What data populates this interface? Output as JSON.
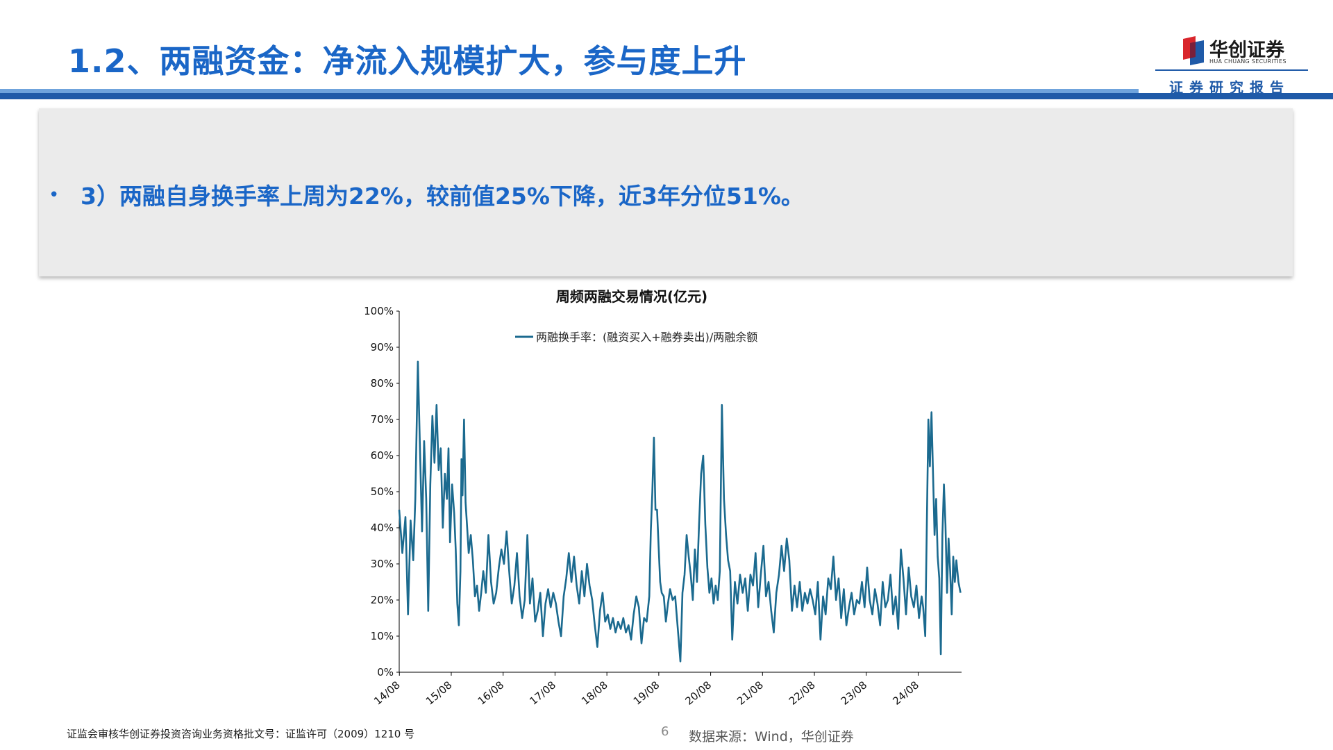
{
  "header": {
    "title": "1.2、两融资金：净流入规模扩大，参与度上升"
  },
  "logo": {
    "name_cn": "华创证券",
    "name_en": "HUA CHUANG SECURITIES",
    "tagline": "证券研究报告"
  },
  "summary": {
    "bullet": "•",
    "text": "3）两融自身换手率上周为22%，较前值25%下降，近3年分位51%。"
  },
  "chart_data": {
    "type": "line",
    "title": "周频两融交易情况(亿元)",
    "legend_position": "top-center",
    "grid": false,
    "ylim": [
      0,
      100
    ],
    "y_ticks": [
      "100%",
      "90%",
      "80%",
      "70%",
      "60%",
      "50%",
      "40%",
      "30%",
      "20%",
      "10%",
      "0%"
    ],
    "x_ticks": [
      "14/08",
      "15/08",
      "16/08",
      "17/08",
      "18/08",
      "19/08",
      "20/08",
      "21/08",
      "22/08",
      "23/08",
      "24/08"
    ],
    "x_range": [
      2014.58,
      2025.42
    ],
    "series": [
      {
        "name": "两融换手率：(融资买入+融券卖出)/两融余额",
        "color": "#1b6a8f",
        "points": [
          [
            2014.58,
            45
          ],
          [
            2014.64,
            33
          ],
          [
            2014.7,
            43
          ],
          [
            2014.75,
            16
          ],
          [
            2014.8,
            42
          ],
          [
            2014.85,
            31
          ],
          [
            2014.89,
            48
          ],
          [
            2014.94,
            86
          ],
          [
            2014.98,
            62
          ],
          [
            2015.02,
            39
          ],
          [
            2015.06,
            64
          ],
          [
            2015.1,
            48
          ],
          [
            2015.14,
            17
          ],
          [
            2015.18,
            52
          ],
          [
            2015.22,
            71
          ],
          [
            2015.26,
            58
          ],
          [
            2015.3,
            74
          ],
          [
            2015.34,
            56
          ],
          [
            2015.38,
            62
          ],
          [
            2015.42,
            40
          ],
          [
            2015.46,
            55
          ],
          [
            2015.5,
            48
          ],
          [
            2015.53,
            62
          ],
          [
            2015.56,
            36
          ],
          [
            2015.6,
            52
          ],
          [
            2015.64,
            44
          ],
          [
            2015.67,
            34
          ],
          [
            2015.7,
            19
          ],
          [
            2015.73,
            13
          ],
          [
            2015.76,
            28
          ],
          [
            2015.78,
            59
          ],
          [
            2015.8,
            49
          ],
          [
            2015.83,
            70
          ],
          [
            2015.86,
            47
          ],
          [
            2015.89,
            40
          ],
          [
            2015.92,
            33
          ],
          [
            2015.96,
            38
          ],
          [
            2016.0,
            31
          ],
          [
            2016.04,
            21
          ],
          [
            2016.08,
            24
          ],
          [
            2016.12,
            17
          ],
          [
            2016.16,
            22
          ],
          [
            2016.2,
            28
          ],
          [
            2016.25,
            22
          ],
          [
            2016.3,
            38
          ],
          [
            2016.35,
            25
          ],
          [
            2016.4,
            19
          ],
          [
            2016.45,
            22
          ],
          [
            2016.5,
            29
          ],
          [
            2016.55,
            34
          ],
          [
            2016.6,
            30
          ],
          [
            2016.65,
            39
          ],
          [
            2016.7,
            28
          ],
          [
            2016.75,
            19
          ],
          [
            2016.8,
            24
          ],
          [
            2016.85,
            33
          ],
          [
            2016.9,
            21
          ],
          [
            2016.95,
            15
          ],
          [
            2017.0,
            20
          ],
          [
            2017.05,
            38
          ],
          [
            2017.1,
            19
          ],
          [
            2017.15,
            26
          ],
          [
            2017.2,
            14
          ],
          [
            2017.25,
            17
          ],
          [
            2017.3,
            22
          ],
          [
            2017.35,
            10
          ],
          [
            2017.4,
            19
          ],
          [
            2017.45,
            23
          ],
          [
            2017.5,
            18
          ],
          [
            2017.55,
            22
          ],
          [
            2017.6,
            19
          ],
          [
            2017.65,
            14
          ],
          [
            2017.7,
            10
          ],
          [
            2017.75,
            21
          ],
          [
            2017.8,
            26
          ],
          [
            2017.85,
            33
          ],
          [
            2017.9,
            25
          ],
          [
            2017.95,
            32
          ],
          [
            2018.0,
            24
          ],
          [
            2018.05,
            19
          ],
          [
            2018.1,
            28
          ],
          [
            2018.15,
            21
          ],
          [
            2018.2,
            30
          ],
          [
            2018.25,
            24
          ],
          [
            2018.3,
            20
          ],
          [
            2018.35,
            13
          ],
          [
            2018.4,
            7
          ],
          [
            2018.45,
            17
          ],
          [
            2018.5,
            22
          ],
          [
            2018.55,
            14
          ],
          [
            2018.6,
            16
          ],
          [
            2018.65,
            12
          ],
          [
            2018.7,
            15
          ],
          [
            2018.75,
            11
          ],
          [
            2018.8,
            14
          ],
          [
            2018.85,
            12
          ],
          [
            2018.9,
            15
          ],
          [
            2018.95,
            11
          ],
          [
            2019.0,
            13
          ],
          [
            2019.05,
            9
          ],
          [
            2019.1,
            16
          ],
          [
            2019.15,
            21
          ],
          [
            2019.2,
            18
          ],
          [
            2019.25,
            8
          ],
          [
            2019.3,
            15
          ],
          [
            2019.35,
            14
          ],
          [
            2019.4,
            21
          ],
          [
            2019.43,
            39
          ],
          [
            2019.46,
            50
          ],
          [
            2019.49,
            65
          ],
          [
            2019.52,
            45
          ],
          [
            2019.55,
            45
          ],
          [
            2019.58,
            35
          ],
          [
            2019.61,
            25
          ],
          [
            2019.64,
            22
          ],
          [
            2019.68,
            21
          ],
          [
            2019.72,
            14
          ],
          [
            2019.76,
            19
          ],
          [
            2019.8,
            23
          ],
          [
            2019.85,
            20
          ],
          [
            2019.9,
            21
          ],
          [
            2019.95,
            12
          ],
          [
            2020.0,
            3
          ],
          [
            2020.04,
            22
          ],
          [
            2020.08,
            27
          ],
          [
            2020.12,
            38
          ],
          [
            2020.16,
            32
          ],
          [
            2020.2,
            27
          ],
          [
            2020.24,
            20
          ],
          [
            2020.28,
            34
          ],
          [
            2020.32,
            25
          ],
          [
            2020.36,
            41
          ],
          [
            2020.4,
            55
          ],
          [
            2020.44,
            60
          ],
          [
            2020.48,
            41
          ],
          [
            2020.52,
            29
          ],
          [
            2020.56,
            22
          ],
          [
            2020.6,
            26
          ],
          [
            2020.64,
            19
          ],
          [
            2020.68,
            24
          ],
          [
            2020.72,
            20
          ],
          [
            2020.76,
            28
          ],
          [
            2020.8,
            74
          ],
          [
            2020.84,
            48
          ],
          [
            2020.88,
            38
          ],
          [
            2020.92,
            31
          ],
          [
            2020.96,
            28
          ],
          [
            2021.0,
            9
          ],
          [
            2021.05,
            25
          ],
          [
            2021.1,
            19
          ],
          [
            2021.15,
            27
          ],
          [
            2021.2,
            22
          ],
          [
            2021.25,
            26
          ],
          [
            2021.3,
            17
          ],
          [
            2021.35,
            27
          ],
          [
            2021.4,
            24
          ],
          [
            2021.45,
            33
          ],
          [
            2021.5,
            18
          ],
          [
            2021.55,
            27
          ],
          [
            2021.6,
            35
          ],
          [
            2021.65,
            21
          ],
          [
            2021.7,
            25
          ],
          [
            2021.75,
            17
          ],
          [
            2021.8,
            11
          ],
          [
            2021.85,
            22
          ],
          [
            2021.9,
            27
          ],
          [
            2021.95,
            35
          ],
          [
            2022.0,
            28
          ],
          [
            2022.05,
            37
          ],
          [
            2022.1,
            31
          ],
          [
            2022.15,
            17
          ],
          [
            2022.2,
            24
          ],
          [
            2022.25,
            18
          ],
          [
            2022.3,
            25
          ],
          [
            2022.35,
            17
          ],
          [
            2022.4,
            22
          ],
          [
            2022.45,
            19
          ],
          [
            2022.5,
            23
          ],
          [
            2022.55,
            20
          ],
          [
            2022.6,
            16
          ],
          [
            2022.65,
            25
          ],
          [
            2022.7,
            9
          ],
          [
            2022.75,
            21
          ],
          [
            2022.8,
            16
          ],
          [
            2022.85,
            26
          ],
          [
            2022.9,
            23
          ],
          [
            2022.95,
            32
          ],
          [
            2023.0,
            20
          ],
          [
            2023.05,
            26
          ],
          [
            2023.1,
            15
          ],
          [
            2023.15,
            23
          ],
          [
            2023.2,
            13
          ],
          [
            2023.25,
            18
          ],
          [
            2023.3,
            22
          ],
          [
            2023.35,
            16
          ],
          [
            2023.4,
            20
          ],
          [
            2023.45,
            19
          ],
          [
            2023.5,
            25
          ],
          [
            2023.55,
            18
          ],
          [
            2023.6,
            29
          ],
          [
            2023.65,
            20
          ],
          [
            2023.7,
            16
          ],
          [
            2023.75,
            23
          ],
          [
            2023.8,
            19
          ],
          [
            2023.85,
            13
          ],
          [
            2023.9,
            25
          ],
          [
            2023.95,
            18
          ],
          [
            2024.0,
            20
          ],
          [
            2024.05,
            27
          ],
          [
            2024.1,
            16
          ],
          [
            2024.15,
            21
          ],
          [
            2024.2,
            12
          ],
          [
            2024.25,
            34
          ],
          [
            2024.3,
            26
          ],
          [
            2024.35,
            16
          ],
          [
            2024.4,
            29
          ],
          [
            2024.45,
            21
          ],
          [
            2024.5,
            18
          ],
          [
            2024.55,
            24
          ],
          [
            2024.6,
            15
          ],
          [
            2024.65,
            21
          ],
          [
            2024.68,
            18
          ],
          [
            2024.72,
            10
          ],
          [
            2024.75,
            40
          ],
          [
            2024.78,
            70
          ],
          [
            2024.81,
            57
          ],
          [
            2024.84,
            72
          ],
          [
            2024.87,
            55
          ],
          [
            2024.9,
            38
          ],
          [
            2024.93,
            48
          ],
          [
            2024.96,
            32
          ],
          [
            2024.99,
            26
          ],
          [
            2025.02,
            5
          ],
          [
            2025.05,
            38
          ],
          [
            2025.08,
            52
          ],
          [
            2025.11,
            41
          ],
          [
            2025.14,
            22
          ],
          [
            2025.17,
            37
          ],
          [
            2025.2,
            28
          ],
          [
            2025.23,
            16
          ],
          [
            2025.26,
            32
          ],
          [
            2025.29,
            25
          ],
          [
            2025.32,
            31
          ],
          [
            2025.36,
            25
          ],
          [
            2025.4,
            22
          ]
        ]
      }
    ]
  },
  "footer": {
    "license": "证监会审核华创证券投资咨询业务资格批文号：证监许可（2009）1210 号",
    "page_number": "6",
    "source": "数据来源：Wind，华创证券"
  }
}
